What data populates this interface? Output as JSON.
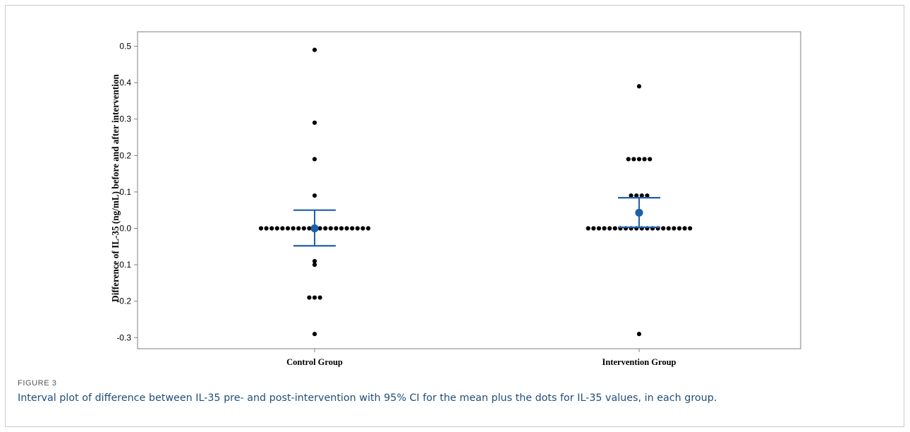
{
  "figure": {
    "label": "FIGURE 3",
    "caption": "Interval plot of difference between IL-35 pre- and post-intervention with 95% CI for the mean plus the dots for IL-35 values, in each group."
  },
  "chart_data": {
    "type": "scatter",
    "title": "",
    "xlabel": "",
    "ylabel": "Difference of IL-35 (ng/mL) before and after intervention",
    "categories": [
      "Control Group",
      "Intervention Group"
    ],
    "ylim": [
      -0.32,
      0.52
    ],
    "yticks": [
      -0.3,
      -0.2,
      -0.1,
      0.0,
      0.1,
      0.2,
      0.3,
      0.4,
      0.5
    ],
    "ytick_labels": [
      "-0.3",
      "-0.2",
      "-0.1",
      "0.0",
      "0.1",
      "0.2",
      "0.3",
      "0.4",
      "0.5"
    ],
    "grid": false,
    "legend": "none",
    "points": [
      {
        "group": "Control Group",
        "values": [
          0.49,
          0.29,
          0.19,
          0.09,
          0,
          0,
          0,
          0,
          0,
          0,
          0,
          0,
          0,
          0,
          0,
          0,
          0,
          0,
          0,
          0,
          0,
          0,
          0,
          0,
          0,
          -0.09,
          -0.1,
          -0.19,
          -0.19,
          -0.19,
          -0.29
        ]
      },
      {
        "group": "Intervention Group",
        "values": [
          0.39,
          0.19,
          0.19,
          0.19,
          0.19,
          0.19,
          0.09,
          0.09,
          0.09,
          0.09,
          0,
          0,
          0,
          0,
          0,
          0,
          0,
          0,
          0,
          0,
          0,
          0,
          0,
          0,
          0,
          0,
          0,
          0,
          0,
          0,
          -0.29
        ]
      }
    ],
    "intervals": [
      {
        "group": "Control Group",
        "mean": 0.0,
        "lower": -0.048,
        "upper": 0.05
      },
      {
        "group": "Intervention Group",
        "mean": 0.043,
        "lower": 0.003,
        "upper": 0.084
      }
    ],
    "colors": {
      "points": "#000000",
      "interval": "#1f5fa8",
      "axis": "#7f7f7f",
      "caption": "#1f4e79"
    }
  }
}
